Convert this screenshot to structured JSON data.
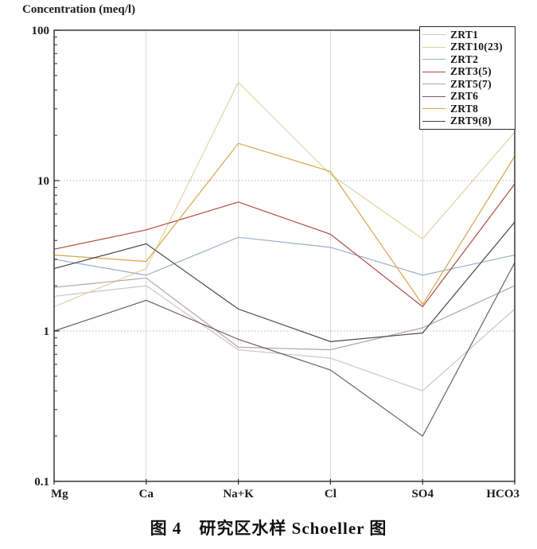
{
  "figure": {
    "caption": "图 4　研究区水样 Schoeller 图"
  },
  "chart_data": {
    "type": "line",
    "title": "",
    "xlabel": "",
    "ylabel": "Concentration (meq/l)",
    "y_scale": "log",
    "ylim": [
      0.1,
      100
    ],
    "y_tick_labels": [
      "100",
      "10",
      "1",
      "0.1"
    ],
    "y_tick_values": [
      100,
      10,
      1,
      0.1
    ],
    "grid": true,
    "legend_position": "top-right",
    "categories": [
      "Mg",
      "Ca",
      "Na+K",
      "Cl",
      "SO4",
      "HCO3"
    ],
    "series": [
      {
        "name": "ZRT1",
        "color": "#c7c7c5",
        "values": [
          1.7,
          2.0,
          0.75,
          0.66,
          0.4,
          1.4
        ]
      },
      {
        "name": "ZRT10(23)",
        "color": "#ddd5a0",
        "values": [
          1.45,
          2.6,
          45,
          11,
          4.1,
          21
        ]
      },
      {
        "name": "ZRT2",
        "color": "#9cadca",
        "values": [
          3.0,
          2.35,
          4.2,
          3.6,
          2.35,
          3.2
        ]
      },
      {
        "name": "ZRT3(5)",
        "color": "#b04a42",
        "values": [
          3.5,
          4.7,
          7.2,
          4.4,
          1.45,
          9.5
        ]
      },
      {
        "name": "ZRT5(7)",
        "color": "#b3a5a2",
        "values": [
          1.95,
          2.25,
          0.78,
          0.75,
          1.05,
          2.0
        ]
      },
      {
        "name": "ZRT6",
        "color": "#6f6060",
        "values": [
          1.0,
          1.6,
          0.88,
          0.55,
          0.2,
          2.85
        ]
      },
      {
        "name": "ZRT8",
        "color": "#d9a54c",
        "values": [
          3.2,
          2.9,
          17.7,
          11.5,
          1.5,
          14.5
        ]
      },
      {
        "name": "ZRT9(8)",
        "color": "#46464a",
        "values": [
          2.6,
          3.8,
          1.4,
          0.85,
          0.97,
          5.3
        ]
      }
    ]
  }
}
